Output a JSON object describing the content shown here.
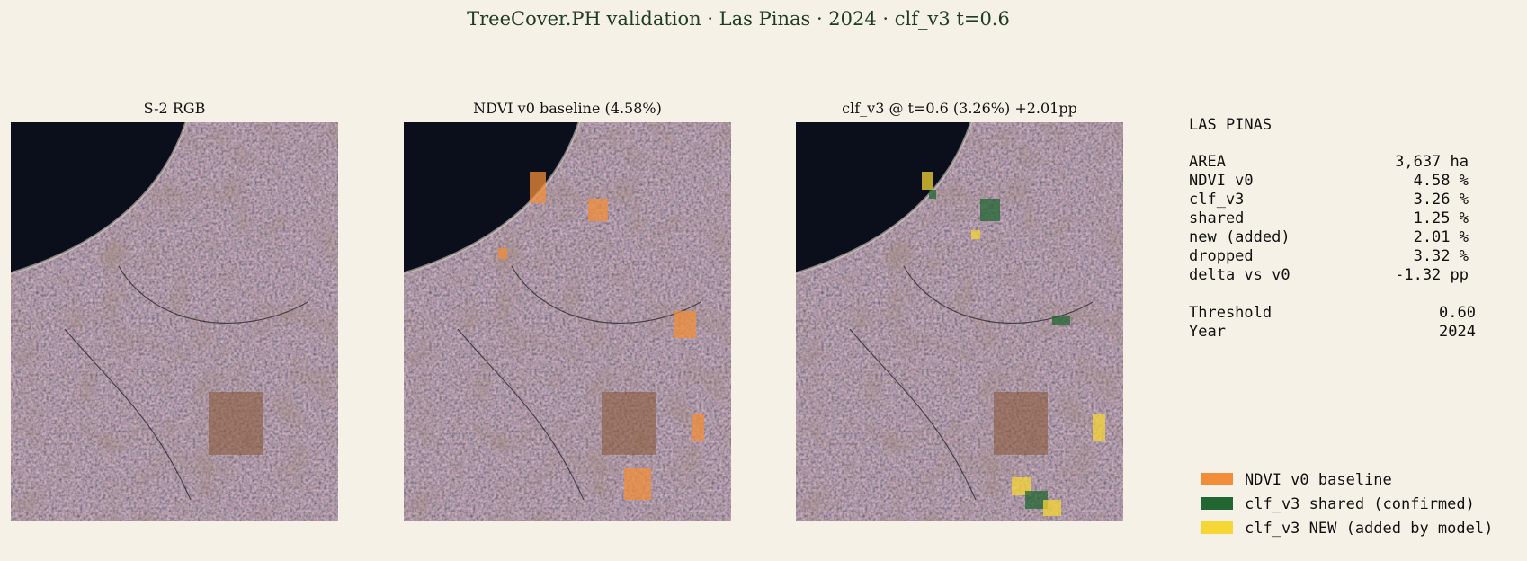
{
  "header": {
    "title": "TreeCover.PH validation · Las Pinas · 2024 · clf_v3 t=0.6"
  },
  "panels": [
    {
      "title": "S-2 RGB"
    },
    {
      "title": "NDVI v0 baseline (4.58%)"
    },
    {
      "title": "clf_v3 @ t=0.6 (3.26%)  +2.01pp"
    }
  ],
  "stats": {
    "heading": "LAS PINAS",
    "rows": [
      {
        "label": "AREA",
        "value": "3,637 ha"
      },
      {
        "label": "NDVI v0",
        "value": "4.58 %"
      },
      {
        "label": "clf_v3",
        "value": "3.26 %"
      },
      {
        "label": "shared",
        "value": "1.25 %"
      },
      {
        "label": "new (added)",
        "value": "2.01 %"
      },
      {
        "label": "dropped",
        "value": "3.32 %"
      },
      {
        "label": "delta vs v0",
        "value": "-1.32 pp"
      }
    ],
    "params": [
      {
        "label": "Threshold",
        "value": "0.60"
      },
      {
        "label": "Year",
        "value": "2024"
      }
    ]
  },
  "legend": [
    {
      "label": "NDVI v0 baseline",
      "color": "#f28e3a"
    },
    {
      "label": "clf_v3 shared (confirmed)",
      "color": "#226632"
    },
    {
      "label": "clf_v3 NEW (added by model)",
      "color": "#f5d634"
    }
  ]
}
